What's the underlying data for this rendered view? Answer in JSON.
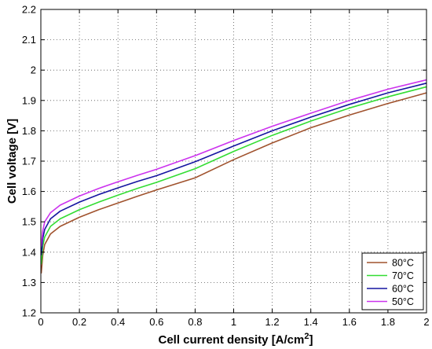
{
  "chart_data": {
    "type": "line",
    "title": "",
    "xlabel": "Cell current density [A/cm",
    "xlabel_superscript": "2",
    "xlabel_suffix": "]",
    "ylabel": "Cell voltage [V]",
    "xlim": [
      0,
      2
    ],
    "ylim": [
      1.2,
      2.2
    ],
    "xticks": [
      0,
      0.2,
      0.4,
      0.6,
      0.8,
      1,
      1.2,
      1.4,
      1.6,
      1.8,
      2
    ],
    "xtick_labels": [
      "0",
      "0.2",
      "0.4",
      "0.6",
      "0.8",
      "1",
      "1.2",
      "1.4",
      "1.6",
      "1.8",
      "2"
    ],
    "yticks": [
      1.2,
      1.3,
      1.4,
      1.5,
      1.6,
      1.7,
      1.8,
      1.9,
      2,
      2.1,
      2.2
    ],
    "ytick_labels": [
      "1.2",
      "1.3",
      "1.4",
      "1.5",
      "1.6",
      "1.7",
      "1.8",
      "1.9",
      "2",
      "2.1",
      "2.2"
    ],
    "grid": true,
    "grid_style": "dotted",
    "legend_position": "bottom-right",
    "series": [
      {
        "name": "80°C",
        "color": "#a0522d",
        "x": [
          0.002,
          0.01,
          0.02,
          0.05,
          0.1,
          0.2,
          0.3,
          0.4,
          0.5,
          0.6,
          0.8,
          1.0,
          1.2,
          1.4,
          1.6,
          1.8,
          2.0
        ],
        "y": [
          1.33,
          1.39,
          1.425,
          1.46,
          1.485,
          1.515,
          1.54,
          1.562,
          1.584,
          1.605,
          1.645,
          1.705,
          1.76,
          1.81,
          1.852,
          1.89,
          1.925
        ]
      },
      {
        "name": "70°C",
        "color": "#33dd33",
        "x": [
          0.002,
          0.01,
          0.02,
          0.05,
          0.1,
          0.2,
          0.3,
          0.4,
          0.5,
          0.6,
          0.8,
          1.0,
          1.2,
          1.4,
          1.6,
          1.8,
          2.0
        ],
        "y": [
          1.36,
          1.42,
          1.45,
          1.485,
          1.51,
          1.54,
          1.565,
          1.588,
          1.61,
          1.63,
          1.675,
          1.732,
          1.785,
          1.832,
          1.875,
          1.912,
          1.945
        ]
      },
      {
        "name": "60°C",
        "color": "#1515a0",
        "x": [
          0.002,
          0.01,
          0.02,
          0.05,
          0.1,
          0.2,
          0.3,
          0.4,
          0.5,
          0.6,
          0.8,
          1.0,
          1.2,
          1.4,
          1.6,
          1.8,
          2.0
        ],
        "y": [
          1.39,
          1.445,
          1.475,
          1.51,
          1.535,
          1.565,
          1.59,
          1.612,
          1.633,
          1.652,
          1.698,
          1.75,
          1.8,
          1.845,
          1.887,
          1.925,
          1.957
        ]
      },
      {
        "name": "50°C",
        "color": "#cc33ee",
        "x": [
          0.002,
          0.01,
          0.02,
          0.05,
          0.1,
          0.2,
          0.3,
          0.4,
          0.5,
          0.6,
          0.8,
          1.0,
          1.2,
          1.4,
          1.6,
          1.8,
          2.0
        ],
        "y": [
          1.42,
          1.47,
          1.5,
          1.53,
          1.555,
          1.585,
          1.61,
          1.632,
          1.653,
          1.673,
          1.718,
          1.768,
          1.815,
          1.858,
          1.9,
          1.937,
          1.968
        ]
      }
    ]
  }
}
